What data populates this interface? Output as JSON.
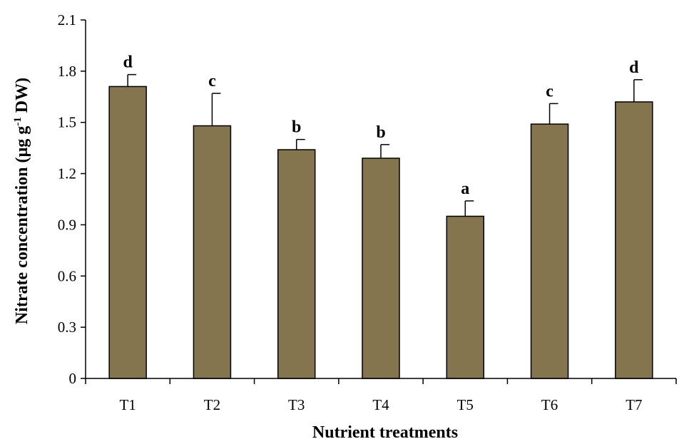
{
  "chart_data": {
    "type": "bar",
    "categories": [
      "T1",
      "T2",
      "T3",
      "T4",
      "T5",
      "T6",
      "T7"
    ],
    "values": [
      1.71,
      1.48,
      1.34,
      1.29,
      0.95,
      1.49,
      1.62
    ],
    "error_upper": [
      0.07,
      0.19,
      0.06,
      0.08,
      0.09,
      0.12,
      0.13
    ],
    "significance_letters": [
      "d",
      "c",
      "b",
      "b",
      "a",
      "c",
      "d"
    ],
    "xlabel": "Nutrient treatments",
    "ylabel_main": "Nitrate concentration (µg g",
    "ylabel_sup": "-1",
    "ylabel_end": " DW)",
    "ylim": [
      0,
      2.1
    ],
    "yticks": [
      "0",
      "0.3",
      "0.6",
      "0.9",
      "1.2",
      "1.5",
      "1.8",
      "2.1"
    ],
    "grid": false,
    "bar_color": "#85754e"
  }
}
